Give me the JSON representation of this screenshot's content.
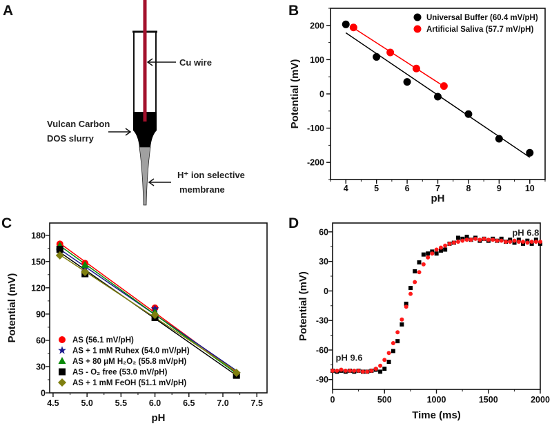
{
  "panel_labels": [
    "A",
    "B",
    "C",
    "D"
  ],
  "diagram": {
    "labels": {
      "cu_wire": "Cu wire",
      "slurry_line1": "Vulcan Carbon",
      "slurry_line2": "DOS slurry",
      "membrane_line1": "H⁺ ion selective",
      "membrane_line2": "membrane"
    },
    "colors": {
      "wire": "#a3102c",
      "slurry": "#000000",
      "membrane": "#a0a0a0"
    }
  },
  "chart_data": [
    {
      "id": "B",
      "type": "scatter",
      "xlabel": "pH",
      "ylabel": "Potential (mV)",
      "xlim": [
        3.5,
        10.5
      ],
      "ylim": [
        -250,
        250
      ],
      "xticks": [
        4,
        5,
        6,
        7,
        8,
        9,
        10
      ],
      "yticks": [
        -200,
        -100,
        0,
        100,
        200
      ],
      "legend_position": "top-right",
      "series": [
        {
          "name": "Universal Buffer (60.4 mV/pH)",
          "color": "#000000",
          "marker": "circle",
          "fit": true,
          "x": [
            4,
            5,
            6,
            7,
            8,
            9,
            10
          ],
          "y": [
            203,
            108,
            35,
            -8,
            -59,
            -131,
            -172
          ]
        },
        {
          "name": "Artificial Saliva (57.7 mV/pH)",
          "color": "#ff0000",
          "marker": "circle",
          "fit": true,
          "x": [
            4.25,
            5.45,
            6.3,
            7.2
          ],
          "y": [
            194,
            121,
            74,
            23
          ]
        }
      ]
    },
    {
      "id": "C",
      "type": "scatter",
      "xlabel": "pH",
      "ylabel": "Potential (mV)",
      "xlim": [
        4.45,
        7.65
      ],
      "ylim": [
        0,
        194
      ],
      "xticks": [
        4.5,
        5.0,
        5.5,
        6.0,
        6.5,
        7.0,
        7.5
      ],
      "yticks": [
        0,
        30,
        60,
        90,
        120,
        150,
        180
      ],
      "legend_position": "bottom-left",
      "series": [
        {
          "name": "AS (56.1 mV/pH)",
          "color": "#ff0000",
          "marker": "circle",
          "fit": true,
          "x": [
            4.6,
            4.97,
            6.0,
            7.2
          ],
          "y": [
            170,
            148,
            97,
            21
          ]
        },
        {
          "name": "AS + 1 mM Ruhex (54.0 mV/pH)",
          "color": "#1a1a8c",
          "marker": "star",
          "fit": true,
          "x": [
            4.6,
            4.97,
            6.0,
            7.2
          ],
          "y": [
            162,
            143,
            96,
            22
          ]
        },
        {
          "name": "AS + 80 μM H₂O₂ (55.8 mV/pH)",
          "color": "#0a8a0a",
          "marker": "triangle",
          "fit": true,
          "x": [
            4.6,
            4.97,
            6.0,
            7.2
          ],
          "y": [
            168,
            146,
            92,
            21
          ]
        },
        {
          "name": "AS - O₂ free (53.0 mV/pH)",
          "color": "#000000",
          "marker": "square",
          "fit": true,
          "x": [
            4.6,
            4.97,
            6.0,
            7.2
          ],
          "y": [
            164,
            136,
            86,
            20
          ]
        },
        {
          "name": "AS + 1 mM FeOH (51.1 mV/pH)",
          "color": "#7f7f10",
          "marker": "diamond",
          "fit": true,
          "x": [
            4.6,
            4.97,
            6.0,
            7.2
          ],
          "y": [
            157,
            138,
            89,
            23
          ]
        }
      ]
    },
    {
      "id": "D",
      "type": "scatter",
      "xlabel": "Time (ms)",
      "ylabel": "Potential (mV)",
      "xlim": [
        0,
        2000
      ],
      "ylim": [
        -100,
        69
      ],
      "xticks": [
        0,
        500,
        1000,
        1500,
        2000
      ],
      "yticks": [
        -90,
        -60,
        -30,
        0,
        30,
        60
      ],
      "annotations": [
        {
          "text": "pH 9.6",
          "x": 30,
          "y": -71
        },
        {
          "text": "pH 6.8",
          "x": 1730,
          "y": 56
        }
      ],
      "series": [
        {
          "name": "black",
          "color": "#000000",
          "marker": "square",
          "fit": false,
          "x": [
            0,
            42,
            83,
            125,
            167,
            208,
            250,
            292,
            334,
            375,
            417,
            459,
            500,
            542,
            584,
            626,
            667,
            709,
            751,
            792,
            834,
            876,
            918,
            959,
            1001,
            1043,
            1084,
            1126,
            1168,
            1209,
            1251,
            1293,
            1334,
            1376,
            1418,
            1459,
            1501,
            1543,
            1584,
            1626,
            1668,
            1709,
            1751,
            1793,
            1834,
            1876,
            1918,
            1959,
            2000
          ],
          "y": [
            -81,
            -82,
            -81,
            -82,
            -81,
            -82,
            -81,
            -82,
            -82,
            -81,
            -80,
            -82,
            -79,
            -72,
            -61,
            -51,
            -34,
            -13,
            3,
            20,
            29,
            37,
            38,
            40,
            38,
            41,
            42,
            48,
            49,
            54,
            53,
            55,
            52,
            54,
            51,
            53,
            51,
            53,
            51,
            53,
            50,
            52,
            49,
            52,
            48,
            51,
            48,
            52,
            48
          ]
        },
        {
          "name": "red",
          "color": "#ff1a1a",
          "marker": "circle",
          "fit": false,
          "x": [
            0,
            42,
            83,
            125,
            167,
            208,
            250,
            292,
            334,
            375,
            417,
            459,
            500,
            542,
            584,
            626,
            667,
            709,
            751,
            792,
            834,
            876,
            918,
            959,
            1001,
            1043,
            1084,
            1126,
            1168,
            1209,
            1251,
            1293,
            1334,
            1376,
            1418,
            1459,
            1501,
            1543,
            1584,
            1626,
            1668,
            1709,
            1751,
            1793,
            1834,
            1876,
            1918,
            1959,
            2000
          ],
          "y": [
            -81,
            -81,
            -80,
            -81,
            -81,
            -81,
            -81,
            -82,
            -82,
            -81,
            -79,
            -76,
            -70,
            -63,
            -53,
            -42,
            -29,
            -16,
            -3,
            9,
            19,
            27,
            34,
            38,
            42,
            44,
            46,
            48,
            49,
            50,
            51,
            52,
            52,
            53,
            52,
            53,
            52,
            52,
            51,
            51,
            50,
            50,
            51,
            50,
            50,
            49,
            50,
            50,
            50
          ]
        }
      ]
    }
  ]
}
